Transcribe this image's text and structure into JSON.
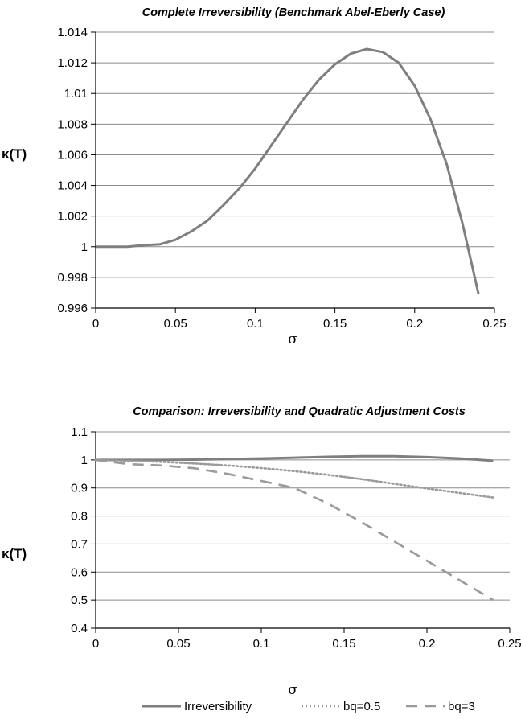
{
  "chart_data": [
    {
      "type": "line",
      "title": "Complete Irreversibility (Benchmark Abel-Eberly Case)",
      "xlabel": "σ",
      "ylabel": "κ(T)",
      "xlim": [
        0,
        0.25
      ],
      "ylim": [
        0.996,
        1.014
      ],
      "x_ticks": [
        "0",
        "0.05",
        "0.1",
        "0.15",
        "0.2",
        "0.25"
      ],
      "y_ticks": [
        "0.996",
        "0.998",
        "1",
        "1.002",
        "1.004",
        "1.006",
        "1.008",
        "1.01",
        "1.012",
        "1.014"
      ],
      "grid": "horizontal",
      "series": [
        {
          "color": "#7f7f7f",
          "style": "solid",
          "x": [
            0,
            0.01,
            0.02,
            0.03,
            0.04,
            0.05,
            0.06,
            0.07,
            0.08,
            0.09,
            0.1,
            0.11,
            0.12,
            0.13,
            0.14,
            0.15,
            0.16,
            0.17,
            0.18,
            0.19,
            0.2,
            0.21,
            0.22,
            0.23,
            0.24
          ],
          "y": [
            1.0,
            1.0,
            1.0,
            1.0001,
            1.00015,
            1.00045,
            1.001,
            1.0017,
            1.0027,
            1.0038,
            1.0051,
            1.0066,
            1.0081,
            1.0096,
            1.0109,
            1.0119,
            1.0126,
            1.0129,
            1.0127,
            1.012,
            1.0105,
            1.0083,
            1.0054,
            1.0015,
            0.9969
          ]
        }
      ]
    },
    {
      "type": "line",
      "title": "Comparison: Irreversibility and Quadratic Adjustment Costs",
      "xlabel": "σ",
      "ylabel": "κ(T)",
      "xlim": [
        0,
        0.25
      ],
      "ylim": [
        0.4,
        1.1
      ],
      "x_ticks": [
        "0",
        "0.05",
        "0.1",
        "0.15",
        "0.2",
        "0.25"
      ],
      "y_ticks": [
        "0.4",
        "0.5",
        "0.6",
        "0.7",
        "0.8",
        "0.9",
        "1",
        "1.1"
      ],
      "grid": "horizontal",
      "legend": "bottom",
      "series": [
        {
          "name": "Irreversibility",
          "color": "#7f7f7f",
          "style": "solid",
          "x": [
            0,
            0.02,
            0.04,
            0.06,
            0.08,
            0.1,
            0.12,
            0.14,
            0.16,
            0.18,
            0.2,
            0.22,
            0.24
          ],
          "y": [
            1.0,
            1.0,
            1.0,
            1.001,
            1.003,
            1.005,
            1.008,
            1.011,
            1.013,
            1.013,
            1.01,
            1.005,
            0.997
          ]
        },
        {
          "name": "bq=0.5",
          "color": "#9a9a9a",
          "style": "dotted",
          "x": [
            0,
            0.02,
            0.04,
            0.06,
            0.08,
            0.1,
            0.12,
            0.14,
            0.16,
            0.18,
            0.2,
            0.22,
            0.24
          ],
          "y": [
            1.0,
            0.997,
            0.993,
            0.987,
            0.98,
            0.971,
            0.96,
            0.947,
            0.932,
            0.915,
            0.898,
            0.882,
            0.866
          ]
        },
        {
          "name": "bq=3",
          "color": "#9a9a9a",
          "style": "dashed",
          "x": [
            0,
            0.02,
            0.04,
            0.06,
            0.08,
            0.1,
            0.12,
            0.14,
            0.16,
            0.18,
            0.2,
            0.22,
            0.24
          ],
          "y": [
            1.0,
            0.985,
            0.98,
            0.97,
            0.95,
            0.925,
            0.9,
            0.845,
            0.78,
            0.71,
            0.64,
            0.57,
            0.5
          ]
        }
      ]
    }
  ]
}
